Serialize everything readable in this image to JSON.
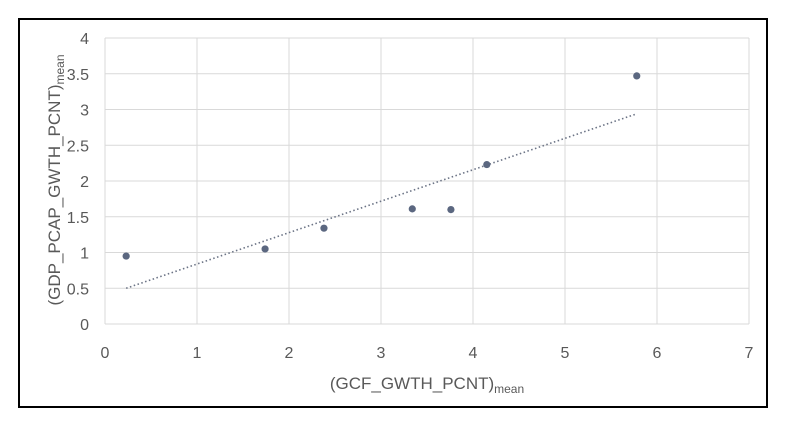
{
  "chart_data": {
    "type": "scatter",
    "xlabel_main": "(GCF_GWTH_PCNT)",
    "xlabel_sub": "mean",
    "ylabel_main": "(GDP_PCAP_GWTH_PCNT)",
    "ylabel_sub": "mean",
    "xlim": [
      0,
      7
    ],
    "ylim": [
      0,
      4
    ],
    "x_ticks": [
      0,
      1,
      2,
      3,
      4,
      5,
      6,
      7
    ],
    "y_ticks": [
      0,
      0.5,
      1,
      1.5,
      2,
      2.5,
      3,
      3.5,
      4
    ],
    "x_tick_labels": [
      "0",
      "1",
      "2",
      "3",
      "4",
      "5",
      "6",
      "7"
    ],
    "y_tick_labels": [
      "0",
      "0.5",
      "1",
      "1.5",
      "2",
      "2.5",
      "3",
      "3.5",
      "4"
    ],
    "grid": true,
    "series": [
      {
        "x": [
          0.23,
          1.74,
          2.38,
          3.34,
          3.76,
          4.15,
          5.78
        ],
        "y": [
          0.95,
          1.05,
          1.34,
          1.61,
          1.6,
          2.23,
          3.47
        ]
      }
    ],
    "trendline": {
      "type": "linear",
      "x_range": [
        0.23,
        5.78
      ],
      "y_range": [
        0.5,
        2.94
      ]
    },
    "colors": {
      "point": "#5b6780",
      "trendline": "#6b7385",
      "grid": "#d9d9d9",
      "text": "#595959"
    }
  }
}
